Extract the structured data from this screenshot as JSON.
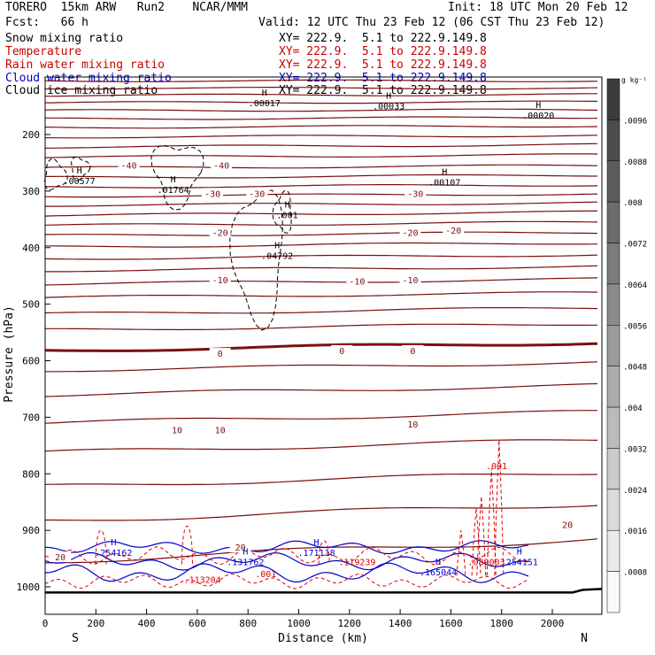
{
  "header": {
    "left_line1": "TORERO  15km ARW   Run2    NCAR/MMM",
    "init": "Init: 18 UTC Mon 20 Feb 12",
    "fcst": "Fcst:   66 h",
    "valid": "Valid: 12 UTC Thu 23 Feb 12 (06 CST Thu 23 Feb 12)"
  },
  "legend": [
    {
      "name": "Snow mixing ratio",
      "color": "#000000",
      "xy": "XY= 222.9.  5.1 to 222.9.149.8"
    },
    {
      "name": "Temperature",
      "color": "#cc0000",
      "xy": "XY= 222.9.  5.1 to 222.9.149.8"
    },
    {
      "name": "Rain water mixing ratio",
      "color": "#cc0000",
      "xy": "XY= 222.9.  5.1 to 222.9.149.8"
    },
    {
      "name": "Cloud water mixing ratio",
      "color": "#0000cc",
      "xy": "XY= 222.9.  5.1 to 222.9.149.8"
    },
    {
      "name": "Cloud ice mixing ratio",
      "color": "#000000",
      "xy": "XY= 222.9.  5.1 to 222.9.149.8"
    }
  ],
  "colors": {
    "temperature": "#7a0f0f",
    "rain": "#dd0000",
    "cloud_water": "#0000cc",
    "ice": "#000000",
    "ground": "#000000"
  },
  "chart_data": {
    "type": "cross-section",
    "xlabel": "Distance (km)",
    "ylabel": "Pressure (hPa)",
    "xlim": [
      0,
      2200
    ],
    "ylim": [
      1050,
      100
    ],
    "x_ticks": [
      "0",
      "200",
      "400",
      "600",
      "800",
      "1000",
      "1200",
      "1400",
      "1600",
      "1800",
      "2000"
    ],
    "x_tick_values": [
      0,
      200,
      400,
      600,
      800,
      1000,
      1200,
      1400,
      1600,
      1800,
      2000
    ],
    "y_ticks": [
      "200",
      "300",
      "400",
      "500",
      "600",
      "700",
      "800",
      "900",
      "1000"
    ],
    "y_tick_values": [
      200,
      300,
      400,
      500,
      600,
      700,
      800,
      900,
      1000
    ],
    "south_label": "S",
    "north_label": "N",
    "colorbar": {
      "unit": "g kg⁻¹",
      "labels": [
        ".0096",
        ".0088",
        ".008",
        ".0072",
        ".0064",
        ".0056",
        ".0048",
        ".004",
        ".0032",
        ".0024",
        ".0016",
        ".0008"
      ],
      "label_values": [
        0.0096,
        0.0088,
        0.008,
        0.0072,
        0.0064,
        0.0056,
        0.0048,
        0.004,
        0.0032,
        0.0024,
        0.0016,
        0.0008
      ],
      "min": 0,
      "max": 0.0104
    },
    "isotherm_pressures": [
      105,
      118,
      130,
      143,
      157,
      171,
      186,
      203,
      220,
      238,
      257,
      274,
      291,
      307,
      323,
      340,
      358,
      376,
      395,
      416,
      437,
      460,
      484,
      512,
      540,
      575,
      610,
      652,
      700,
      751,
      810,
      868,
      935
    ],
    "isotherm_slopes": [
      0,
      0,
      1,
      1,
      1,
      2,
      2,
      2,
      3,
      3,
      3,
      3,
      3,
      3,
      3,
      4,
      4,
      4,
      5,
      5,
      5,
      6,
      6,
      8,
      8,
      10,
      10,
      12,
      14,
      16,
      18,
      22,
      28
    ],
    "freezing_index": 25,
    "temperature_labels": [
      {
        "text": "-40",
        "x": 330,
        "p": 257
      },
      {
        "text": "-40",
        "x": 695,
        "p": 257
      },
      {
        "text": "-30",
        "x": 660,
        "p": 307
      },
      {
        "text": "-30",
        "x": 835,
        "p": 307
      },
      {
        "text": "-30",
        "x": 1460,
        "p": 307
      },
      {
        "text": "-20",
        "x": 690,
        "p": 376
      },
      {
        "text": "-20",
        "x": 1440,
        "p": 376
      },
      {
        "text": "-20",
        "x": 1610,
        "p": 372
      },
      {
        "text": "-10",
        "x": 690,
        "p": 460
      },
      {
        "text": "-10",
        "x": 1230,
        "p": 462
      },
      {
        "text": "-10",
        "x": 1440,
        "p": 460
      },
      {
        "text": "0",
        "x": 690,
        "p": 590
      },
      {
        "text": "0",
        "x": 1170,
        "p": 585
      },
      {
        "text": "0",
        "x": 1450,
        "p": 585
      },
      {
        "text": "10",
        "x": 520,
        "p": 725
      },
      {
        "text": "10",
        "x": 690,
        "p": 725
      },
      {
        "text": "10",
        "x": 1450,
        "p": 715
      },
      {
        "text": "20",
        "x": 60,
        "p": 950
      },
      {
        "text": "20",
        "x": 770,
        "p": 933
      },
      {
        "text": "20",
        "x": 2060,
        "p": 893
      }
    ],
    "ice_maxima": [
      {
        "label": ".00577",
        "x": 100,
        "p": 288
      },
      {
        "label": ".01764",
        "x": 470,
        "p": 303
      },
      {
        "label": ".04792",
        "x": 880,
        "p": 420
      },
      {
        "label": ".001",
        "x": 920,
        "p": 348
      },
      {
        "label": ".00107",
        "x": 1540,
        "p": 290
      },
      {
        "label": ".00017",
        "x": 830,
        "p": 150
      },
      {
        "label": ".00033",
        "x": 1320,
        "p": 155
      },
      {
        "label": ".00020",
        "x": 1910,
        "p": 172
      }
    ],
    "cloud_water_maxima": [
      {
        "label": ".254162",
        "x": 270,
        "p": 945
      },
      {
        "label": ".131762",
        "x": 790,
        "p": 962
      },
      {
        "label": ".171118",
        "x": 1070,
        "p": 945
      },
      {
        "label": ".165044",
        "x": 1550,
        "p": 980
      },
      {
        "label": ".254151",
        "x": 1870,
        "p": 962
      }
    ],
    "rain_labels": [
      {
        "label": ".001",
        "x": 1780,
        "p": 792
      },
      {
        "label": ".119239",
        "x": 1230,
        "p": 962
      },
      {
        "label": ".113204",
        "x": 620,
        "p": 993
      },
      {
        "label": ".001",
        "x": 870,
        "p": 983
      },
      {
        "label": ".089003",
        "x": 1740,
        "p": 962
      }
    ]
  }
}
